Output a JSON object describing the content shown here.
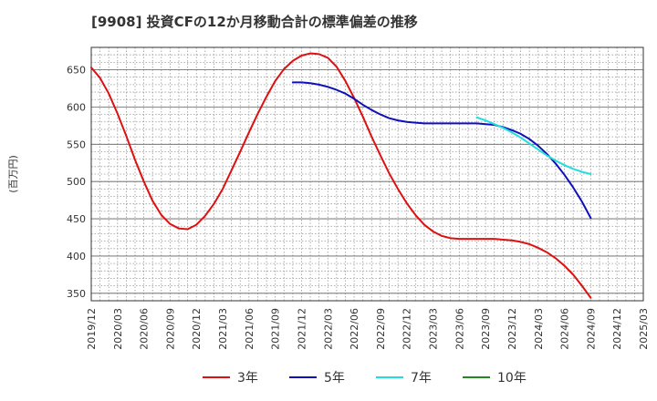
{
  "chart_data": {
    "type": "line",
    "title": "[9908]  投資CFの12か月移動合計の標準偏差の推移",
    "ylabel": "(百万円)",
    "xlabel": "",
    "ylim": [
      340,
      680
    ],
    "yticks": [
      350,
      400,
      450,
      500,
      550,
      600,
      650
    ],
    "x_range": [
      "2019-12",
      "2025-03"
    ],
    "xticks": [
      "2019/12",
      "2020/03",
      "2020/06",
      "2020/09",
      "2020/12",
      "2021/03",
      "2021/06",
      "2021/09",
      "2021/12",
      "2022/03",
      "2022/06",
      "2022/09",
      "2022/12",
      "2023/03",
      "2023/06",
      "2023/09",
      "2023/12",
      "2024/03",
      "2024/06",
      "2024/09",
      "2024/12",
      "2025/03"
    ],
    "grid": true,
    "legend_position": "bottom",
    "series": [
      {
        "name": "3年",
        "color": "#dd1111",
        "points": [
          [
            "2019-12",
            653
          ],
          [
            "2020-01",
            639
          ],
          [
            "2020-02",
            618
          ],
          [
            "2020-03",
            591
          ],
          [
            "2020-04",
            561
          ],
          [
            "2020-05",
            529
          ],
          [
            "2020-06",
            500
          ],
          [
            "2020-07",
            474
          ],
          [
            "2020-08",
            455
          ],
          [
            "2020-09",
            443
          ],
          [
            "2020-10",
            437
          ],
          [
            "2020-11",
            436
          ],
          [
            "2020-12",
            442
          ],
          [
            "2021-01",
            454
          ],
          [
            "2021-02",
            470
          ],
          [
            "2021-03",
            490
          ],
          [
            "2021-04",
            515
          ],
          [
            "2021-05",
            540
          ],
          [
            "2021-06",
            566
          ],
          [
            "2021-07",
            591
          ],
          [
            "2021-08",
            614
          ],
          [
            "2021-09",
            635
          ],
          [
            "2021-10",
            651
          ],
          [
            "2021-11",
            662
          ],
          [
            "2021-12",
            669
          ],
          [
            "2022-01",
            672
          ],
          [
            "2022-02",
            671
          ],
          [
            "2022-03",
            666
          ],
          [
            "2022-04",
            654
          ],
          [
            "2022-05",
            635
          ],
          [
            "2022-06",
            612
          ],
          [
            "2022-07",
            587
          ],
          [
            "2022-08",
            560
          ],
          [
            "2022-09",
            535
          ],
          [
            "2022-10",
            511
          ],
          [
            "2022-11",
            490
          ],
          [
            "2022-12",
            471
          ],
          [
            "2023-01",
            455
          ],
          [
            "2023-02",
            442
          ],
          [
            "2023-03",
            433
          ],
          [
            "2023-04",
            427
          ],
          [
            "2023-05",
            424
          ],
          [
            "2023-06",
            423
          ],
          [
            "2023-07",
            423
          ],
          [
            "2023-08",
            423
          ],
          [
            "2023-09",
            423
          ],
          [
            "2023-10",
            423
          ],
          [
            "2023-11",
            422
          ],
          [
            "2023-12",
            421
          ],
          [
            "2024-01",
            419
          ],
          [
            "2024-02",
            416
          ],
          [
            "2024-03",
            411
          ],
          [
            "2024-04",
            405
          ],
          [
            "2024-05",
            397
          ],
          [
            "2024-06",
            387
          ],
          [
            "2024-07",
            375
          ],
          [
            "2024-08",
            360
          ],
          [
            "2024-09",
            344
          ]
        ]
      },
      {
        "name": "5年",
        "color": "#1010bb",
        "points": [
          [
            "2021-11",
            633
          ],
          [
            "2021-12",
            633
          ],
          [
            "2022-01",
            632
          ],
          [
            "2022-02",
            630
          ],
          [
            "2022-03",
            627
          ],
          [
            "2022-04",
            623
          ],
          [
            "2022-05",
            618
          ],
          [
            "2022-06",
            611
          ],
          [
            "2022-07",
            603
          ],
          [
            "2022-08",
            596
          ],
          [
            "2022-09",
            590
          ],
          [
            "2022-10",
            585
          ],
          [
            "2022-11",
            582
          ],
          [
            "2022-12",
            580
          ],
          [
            "2023-01",
            579
          ],
          [
            "2023-02",
            578
          ],
          [
            "2023-03",
            578
          ],
          [
            "2023-04",
            578
          ],
          [
            "2023-05",
            578
          ],
          [
            "2023-06",
            578
          ],
          [
            "2023-07",
            578
          ],
          [
            "2023-08",
            578
          ],
          [
            "2023-09",
            577
          ],
          [
            "2023-10",
            576
          ],
          [
            "2023-11",
            573
          ],
          [
            "2023-12",
            569
          ],
          [
            "2024-01",
            564
          ],
          [
            "2024-02",
            557
          ],
          [
            "2024-03",
            548
          ],
          [
            "2024-04",
            537
          ],
          [
            "2024-05",
            524
          ],
          [
            "2024-06",
            509
          ],
          [
            "2024-07",
            492
          ],
          [
            "2024-08",
            473
          ],
          [
            "2024-09",
            451
          ]
        ]
      },
      {
        "name": "7年",
        "color": "#22dddd",
        "points": [
          [
            "2023-08",
            586
          ],
          [
            "2023-09",
            582
          ],
          [
            "2023-10",
            577
          ],
          [
            "2023-11",
            572
          ],
          [
            "2023-12",
            566
          ],
          [
            "2024-01",
            559
          ],
          [
            "2024-02",
            551
          ],
          [
            "2024-03",
            543
          ],
          [
            "2024-04",
            535
          ],
          [
            "2024-05",
            528
          ],
          [
            "2024-06",
            522
          ],
          [
            "2024-07",
            517
          ],
          [
            "2024-08",
            513
          ],
          [
            "2024-09",
            510
          ]
        ]
      },
      {
        "name": "10年",
        "color": "#228822",
        "points": []
      }
    ]
  }
}
